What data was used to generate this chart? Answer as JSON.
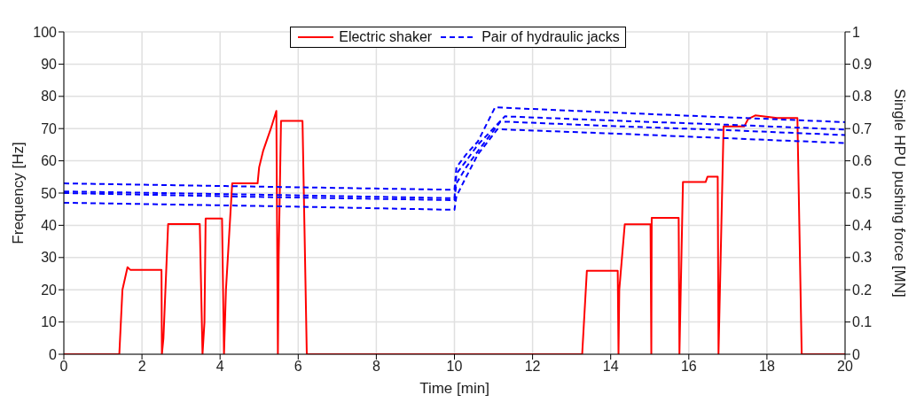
{
  "chart_data": {
    "type": "line",
    "xlabel": "Time [min]",
    "ylabel": "Frequency [Hz]",
    "y2label": "Single HPU pushing force [MN]",
    "xlim": [
      0,
      20
    ],
    "xticks": [
      0,
      2,
      4,
      6,
      8,
      10,
      12,
      14,
      16,
      18,
      20
    ],
    "ylim": [
      0,
      100
    ],
    "yticks": [
      0,
      10,
      20,
      30,
      40,
      50,
      60,
      70,
      80,
      90,
      100
    ],
    "y2lim": [
      0,
      1
    ],
    "y2ticks": [
      0,
      0.1,
      0.2,
      0.3,
      0.4,
      0.5,
      0.6,
      0.7,
      0.8,
      0.9,
      1
    ],
    "grid": true,
    "legend": "top",
    "marker": "none",
    "series": [
      {
        "name": "Electric shaker",
        "color": "#ff0000",
        "line_style": "solid",
        "x": [
          0,
          1.42,
          1.5,
          1.63,
          1.7,
          2.5,
          2.51,
          2.55,
          2.67,
          3.48,
          3.55,
          3.6,
          3.63,
          4.05,
          4.1,
          4.15,
          4.31,
          4.96,
          5.0,
          5.1,
          5.3,
          5.44,
          5.48,
          5.5,
          5.56,
          6.11,
          6.22,
          13.27,
          13.39,
          14.18,
          14.2,
          14.22,
          14.36,
          15.02,
          15.04,
          15.05,
          15.74,
          15.76,
          15.85,
          16.43,
          16.48,
          16.74,
          16.76,
          16.89,
          17.42,
          17.52,
          17.7,
          18.26,
          18.78,
          18.89,
          20
        ],
        "values": [
          0,
          0,
          20,
          27,
          26.2,
          26.2,
          0,
          5,
          40.4,
          40.4,
          0,
          10,
          42.1,
          42.1,
          0,
          20,
          53,
          53,
          58,
          63,
          70,
          75.5,
          0,
          30,
          72.4,
          72.4,
          0,
          0,
          25.9,
          25.9,
          0,
          20,
          40.3,
          40.3,
          0,
          42.3,
          42.3,
          0,
          53.4,
          53.4,
          55.1,
          55.1,
          0,
          70.7,
          70.7,
          73,
          74.1,
          73.3,
          73.3,
          0,
          0
        ]
      },
      {
        "name": "Pair of hydraulic jacks",
        "color": "#0000ff",
        "line_style": "dashed",
        "axis": "y2",
        "x": [
          0,
          5,
          10,
          10.05,
          10.3,
          10.6,
          11.04,
          14,
          17,
          20
        ],
        "values": [
          0.53,
          0.52,
          0.51,
          0.58,
          0.62,
          0.66,
          0.766,
          0.75,
          0.735,
          0.72
        ]
      },
      {
        "color": "#0000ff",
        "line_style": "dashed",
        "axis": "y2",
        "x": [
          0,
          5,
          10,
          10.05,
          10.3,
          10.6,
          11.29,
          14,
          17,
          20
        ],
        "values": [
          0.505,
          0.495,
          0.484,
          0.56,
          0.6,
          0.65,
          0.738,
          0.725,
          0.712,
          0.697
        ]
      },
      {
        "color": "#0000ff",
        "line_style": "dashed",
        "axis": "y2",
        "x": [
          0,
          5,
          10,
          10.05,
          10.3,
          10.6,
          11.18,
          14,
          17,
          20
        ],
        "values": [
          0.5,
          0.488,
          0.478,
          0.53,
          0.58,
          0.63,
          0.722,
          0.708,
          0.695,
          0.68
        ]
      },
      {
        "color": "#0000ff",
        "line_style": "dashed",
        "axis": "y2",
        "x": [
          0,
          5,
          10,
          10.05,
          10.3,
          10.6,
          11.1,
          14,
          17,
          20
        ],
        "values": [
          0.47,
          0.46,
          0.448,
          0.49,
          0.55,
          0.62,
          0.698,
          0.685,
          0.67,
          0.655
        ]
      }
    ]
  }
}
